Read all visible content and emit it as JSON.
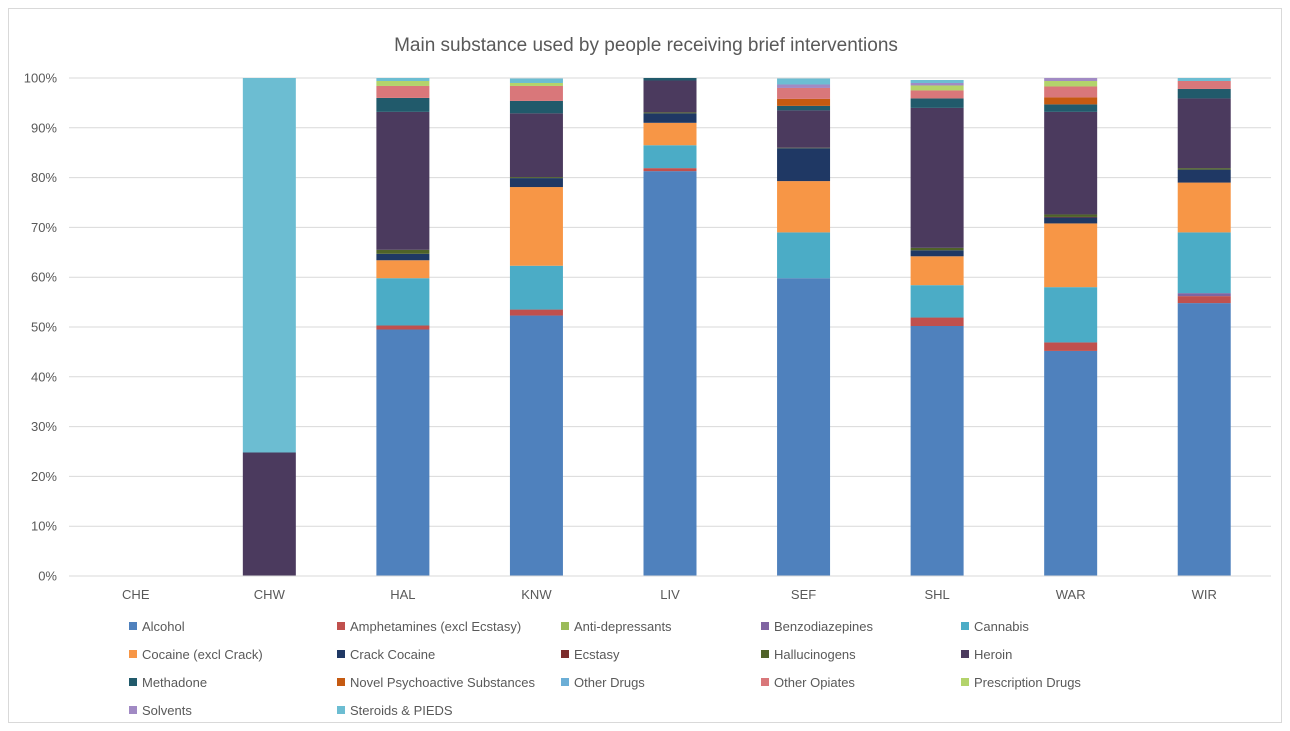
{
  "chart_data": {
    "type": "bar",
    "stacked": true,
    "percent_stacked": true,
    "title": "Main substance used by people receiving brief interventions",
    "xlabel": "",
    "ylabel": "",
    "ylim": [
      0,
      100
    ],
    "yticks": [
      "0%",
      "10%",
      "20%",
      "30%",
      "40%",
      "50%",
      "60%",
      "70%",
      "80%",
      "90%",
      "100%"
    ],
    "grid": true,
    "legend_position": "bottom",
    "categories": [
      "CHE",
      "CHW",
      "HAL",
      "KNW",
      "LIV",
      "SEF",
      "SHL",
      "WAR",
      "WIR"
    ],
    "series": [
      {
        "name": "Alcohol",
        "color": "#4f81bd",
        "values": [
          0,
          0,
          49.5,
          52.3,
          81.3,
          59.8,
          50.2,
          45.2,
          54.8
        ]
      },
      {
        "name": "Amphetamines (excl Ecstasy)",
        "color": "#c0504d",
        "values": [
          0,
          0,
          0.8,
          1.2,
          0.6,
          0,
          1.7,
          1.7,
          1.4
        ]
      },
      {
        "name": "Anti-depressants",
        "color": "#9bbb59",
        "values": [
          0,
          0,
          0,
          0,
          0,
          0,
          0,
          0,
          0
        ]
      },
      {
        "name": "Benzodiazepines",
        "color": "#8064a2",
        "values": [
          0,
          0,
          0,
          0,
          0,
          0,
          0,
          0,
          0.6
        ]
      },
      {
        "name": "Cannabis",
        "color": "#4bacc6",
        "values": [
          0,
          0,
          9.5,
          8.8,
          4.6,
          9.2,
          6.5,
          11.1,
          12.2
        ]
      },
      {
        "name": "Cocaine (excl Crack)",
        "color": "#f79646",
        "values": [
          0,
          0,
          3.6,
          15.8,
          4.5,
          10.3,
          5.8,
          12.8,
          10.0
        ]
      },
      {
        "name": "Crack Cocaine",
        "color": "#1f3864",
        "values": [
          0,
          0,
          1.3,
          1.8,
          1.9,
          6.6,
          1.2,
          1.2,
          2.6
        ]
      },
      {
        "name": "Ecstasy",
        "color": "#7b2c2c",
        "values": [
          0,
          0,
          0,
          0,
          0,
          0,
          0,
          0.1,
          0
        ]
      },
      {
        "name": "Hallucinogens",
        "color": "#4f6228",
        "values": [
          0,
          0,
          0.8,
          0.2,
          0.2,
          0.1,
          0.5,
          0.5,
          0.3
        ]
      },
      {
        "name": "Heroin",
        "color": "#4b3a5e",
        "values": [
          0,
          24.8,
          27.7,
          12.8,
          6.4,
          7.5,
          28.1,
          20.6,
          14.0
        ]
      },
      {
        "name": "Methadone",
        "color": "#215a6b",
        "values": [
          0,
          0,
          2.8,
          2.5,
          0.5,
          0.9,
          1.9,
          1.5,
          1.9
        ]
      },
      {
        "name": "Novel Psychoactive Substances",
        "color": "#c55a11",
        "values": [
          0,
          0,
          0,
          0,
          0,
          1.4,
          0,
          1.4,
          0
        ]
      },
      {
        "name": "Other Drugs",
        "color": "#6baed6",
        "values": [
          0,
          0,
          0,
          0,
          0,
          0,
          0,
          0,
          0
        ]
      },
      {
        "name": "Other Opiates",
        "color": "#d9777a",
        "values": [
          0,
          0,
          2.4,
          3.0,
          0,
          2.2,
          1.6,
          2.2,
          1.6
        ]
      },
      {
        "name": "Prescription Drugs",
        "color": "#b3d36b",
        "values": [
          0,
          0,
          1.0,
          0.6,
          0,
          0,
          1.0,
          1.1,
          0
        ]
      },
      {
        "name": "Solvents",
        "color": "#a18ac4",
        "values": [
          0,
          0,
          0,
          0,
          0,
          0.7,
          0.5,
          0.6,
          0
        ]
      },
      {
        "name": "Steroids & PIEDS",
        "color": "#6cbdd2",
        "values": [
          0,
          75.2,
          0.6,
          0.9,
          0,
          1.2,
          0.6,
          0,
          0.6
        ]
      }
    ]
  }
}
